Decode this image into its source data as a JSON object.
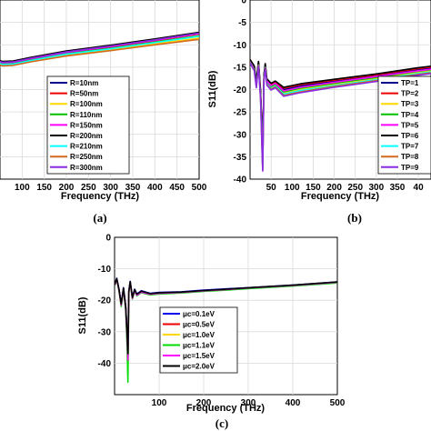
{
  "chart_data": [
    {
      "panel": "(a)",
      "type": "line",
      "xlabel": "Frequency (THz)",
      "ylabel": "",
      "xlim": [
        0,
        500
      ],
      "ylim": [
        -40,
        0
      ],
      "xticks": [
        "100",
        "150",
        "200",
        "250",
        "300",
        "350",
        "400",
        "450",
        "500"
      ],
      "grid": true,
      "legend_position": "lower-right",
      "series": [
        {
          "name": "R=10nm",
          "color": "#00008b",
          "x": [
            0,
            10,
            20,
            35,
            55,
            80,
            120,
            200,
            300,
            400,
            500
          ],
          "y": [
            -12.2,
            -13.3,
            -14.6,
            -13.0,
            -13.8,
            -13.7,
            -12.9,
            -11.5,
            -10.2,
            -8.8,
            -7.3
          ]
        },
        {
          "name": "R=50nm",
          "color": "#ee0000",
          "x": [
            0,
            10,
            20,
            35,
            55,
            80,
            120,
            200,
            300,
            400,
            500
          ],
          "y": [
            -12.4,
            -13.6,
            -14.9,
            -13.3,
            -14.1,
            -14.0,
            -13.2,
            -11.8,
            -10.5,
            -9.1,
            -7.6
          ]
        },
        {
          "name": "R=100nm",
          "color": "#ffd700",
          "x": [
            0,
            10,
            20,
            35,
            55,
            80,
            120,
            200,
            300,
            400,
            500
          ],
          "y": [
            -12.7,
            -14.0,
            -15.3,
            -13.7,
            -14.5,
            -14.4,
            -13.6,
            -12.3,
            -11.1,
            -9.8,
            -8.5
          ]
        },
        {
          "name": "R=110nm",
          "color": "#00c000",
          "x": [
            0,
            10,
            20,
            35,
            55,
            80,
            120,
            200,
            300,
            400,
            500
          ],
          "y": [
            -12.5,
            -13.8,
            -15.1,
            -13.5,
            -14.3,
            -14.2,
            -13.4,
            -12.0,
            -10.8,
            -9.4,
            -8.0
          ]
        },
        {
          "name": "R=150nm",
          "color": "#ff00ff",
          "x": [
            0,
            10,
            20,
            35,
            55,
            80,
            120,
            200,
            300,
            400,
            500
          ],
          "y": [
            -12.3,
            -13.5,
            -14.8,
            -13.2,
            -14.0,
            -13.9,
            -13.1,
            -11.7,
            -10.4,
            -9.0,
            -7.5
          ]
        },
        {
          "name": "R=200nm",
          "color": "#000000",
          "x": [
            0,
            10,
            20,
            35,
            55,
            80,
            120,
            200,
            300,
            400,
            500
          ],
          "y": [
            -12.1,
            -13.2,
            -14.5,
            -12.9,
            -13.7,
            -13.6,
            -12.8,
            -11.4,
            -10.1,
            -8.7,
            -7.2
          ]
        },
        {
          "name": "R=210nm",
          "color": "#00ffff",
          "x": [
            0,
            10,
            20,
            35,
            55,
            80,
            120,
            200,
            300,
            400,
            500
          ],
          "y": [
            -12.6,
            -13.9,
            -15.2,
            -13.6,
            -14.4,
            -14.3,
            -13.5,
            -12.1,
            -10.9,
            -9.5,
            -8.1
          ]
        },
        {
          "name": "R=250nm",
          "color": "#d2691e",
          "x": [
            0,
            10,
            20,
            35,
            55,
            80,
            120,
            200,
            300,
            400,
            500
          ],
          "y": [
            -12.8,
            -14.1,
            -15.5,
            -13.9,
            -14.7,
            -14.6,
            -13.8,
            -12.5,
            -11.3,
            -10.0,
            -8.8
          ]
        },
        {
          "name": "R=300nm",
          "color": "#8a2be2",
          "x": [
            0,
            10,
            20,
            35,
            55,
            80,
            120,
            200,
            300,
            400,
            500
          ],
          "y": [
            -12.2,
            -13.4,
            -14.7,
            -13.1,
            -13.9,
            -13.8,
            -13.0,
            -11.6,
            -10.3,
            -8.9,
            -7.4
          ]
        }
      ]
    },
    {
      "panel": "(b)",
      "type": "line",
      "xlabel": "Frequency (THz)",
      "ylabel": "S11(dB)",
      "xlim": [
        0,
        500
      ],
      "ylim": [
        -40,
        0
      ],
      "xticks": [
        "50",
        "100",
        "150",
        "200",
        "250",
        "300",
        "350",
        "40"
      ],
      "yticks": [
        "-40",
        "-35",
        "-30",
        "-25",
        "-20",
        "-15",
        "-10",
        "-5",
        "0"
      ],
      "grid": true,
      "legend_position": "lower-right",
      "series": [
        {
          "name": "TP=1",
          "color": "#00008b",
          "x": [
            0,
            10,
            15,
            20,
            25,
            28,
            30,
            33,
            36,
            40,
            50,
            60,
            80,
            120,
            200,
            300,
            400,
            500
          ],
          "y": [
            -13.5,
            -15.0,
            -18.5,
            -14.0,
            -21.0,
            -30.0,
            -36.0,
            -17.0,
            -14.5,
            -18.0,
            -19.0,
            -18.5,
            -20.0,
            -19.2,
            -18.2,
            -17.0,
            -15.6,
            -14.5
          ]
        },
        {
          "name": "TP=2",
          "color": "#ee0000",
          "x": [
            0,
            10,
            15,
            20,
            25,
            28,
            30,
            33,
            36,
            40,
            50,
            60,
            80,
            120,
            200,
            300,
            400,
            500
          ],
          "y": [
            -13.4,
            -14.8,
            -18.2,
            -13.8,
            -20.5,
            -29.0,
            -35.0,
            -16.8,
            -14.3,
            -17.8,
            -18.8,
            -18.3,
            -19.7,
            -18.9,
            -17.9,
            -16.7,
            -15.3,
            -14.2
          ]
        },
        {
          "name": "TP=3",
          "color": "#ffd700",
          "x": [
            0,
            10,
            15,
            20,
            25,
            28,
            30,
            33,
            36,
            40,
            50,
            60,
            80,
            120,
            200,
            300,
            400,
            500
          ],
          "y": [
            -13.8,
            -15.4,
            -19.0,
            -14.4,
            -21.5,
            -31.0,
            -37.0,
            -17.4,
            -14.8,
            -18.4,
            -19.5,
            -19.0,
            -20.8,
            -20.0,
            -18.9,
            -17.6,
            -16.2,
            -15.0
          ]
        },
        {
          "name": "TP=4",
          "color": "#00c000",
          "x": [
            0,
            10,
            15,
            20,
            25,
            28,
            30,
            33,
            36,
            40,
            50,
            60,
            80,
            120,
            200,
            300,
            400,
            500
          ],
          "y": [
            -13.7,
            -15.2,
            -18.8,
            -14.2,
            -21.2,
            -30.5,
            -36.5,
            -17.2,
            -14.7,
            -18.2,
            -19.3,
            -18.8,
            -20.5,
            -19.7,
            -18.6,
            -17.3,
            -15.9,
            -14.8
          ]
        },
        {
          "name": "TP=5",
          "color": "#ff00ff",
          "x": [
            0,
            10,
            15,
            20,
            25,
            28,
            30,
            33,
            36,
            40,
            50,
            60,
            80,
            120,
            200,
            300,
            400,
            500
          ],
          "y": [
            -13.6,
            -15.1,
            -18.6,
            -14.1,
            -21.1,
            -30.2,
            -38.0,
            -17.1,
            -14.6,
            -18.1,
            -19.1,
            -18.6,
            -20.3,
            -19.5,
            -18.4,
            -17.1,
            -15.8,
            -14.7
          ]
        },
        {
          "name": "TP=6",
          "color": "#000000",
          "x": [
            0,
            10,
            15,
            20,
            25,
            28,
            30,
            33,
            36,
            40,
            50,
            60,
            80,
            120,
            200,
            300,
            400,
            500
          ],
          "y": [
            -13.3,
            -14.7,
            -18.0,
            -13.7,
            -20.3,
            -28.5,
            -34.5,
            -16.6,
            -14.2,
            -17.6,
            -18.6,
            -18.1,
            -19.5,
            -18.7,
            -17.7,
            -16.5,
            -15.1,
            -14.0
          ]
        },
        {
          "name": "TP=7",
          "color": "#00ffff",
          "x": [
            0,
            10,
            15,
            20,
            25,
            28,
            30,
            33,
            36,
            40,
            50,
            60,
            80,
            120,
            200,
            300,
            400,
            500
          ],
          "y": [
            -13.9,
            -15.5,
            -19.2,
            -14.5,
            -21.8,
            -31.5,
            -37.5,
            -17.6,
            -15.0,
            -18.6,
            -19.7,
            -19.2,
            -21.0,
            -20.2,
            -19.1,
            -17.8,
            -16.4,
            -15.2
          ]
        },
        {
          "name": "TP=8",
          "color": "#d2691e",
          "x": [
            0,
            10,
            15,
            20,
            25,
            28,
            30,
            33,
            36,
            40,
            50,
            60,
            80,
            120,
            200,
            300,
            400,
            500
          ],
          "y": [
            -14.0,
            -15.6,
            -19.4,
            -14.6,
            -22.0,
            -32.0,
            -37.8,
            -17.8,
            -15.1,
            -18.8,
            -19.9,
            -19.4,
            -21.3,
            -20.5,
            -19.3,
            -18.0,
            -16.6,
            -15.4
          ]
        },
        {
          "name": "TP=9",
          "color": "#8a2be2",
          "x": [
            0,
            10,
            15,
            20,
            25,
            28,
            30,
            33,
            36,
            40,
            50,
            60,
            80,
            120,
            200,
            300,
            400,
            500
          ],
          "y": [
            -14.1,
            -15.8,
            -19.6,
            -14.8,
            -22.3,
            -32.5,
            -38.2,
            -18.0,
            -15.3,
            -19.0,
            -20.1,
            -19.6,
            -21.5,
            -20.7,
            -19.5,
            -18.2,
            -16.8,
            -15.6
          ]
        }
      ]
    },
    {
      "panel": "(c)",
      "type": "line",
      "xlabel": "Frequency (THz)",
      "ylabel": "S11(dB)",
      "xlim": [
        0,
        500
      ],
      "ylim": [
        -50,
        0
      ],
      "xticks": [
        "100",
        "200",
        "300",
        "400",
        "500"
      ],
      "yticks": [
        "-40",
        "-30",
        "-20",
        "-10",
        "0"
      ],
      "grid": true,
      "legend_position": "lower-right",
      "series": [
        {
          "name": "μc=0.1eV",
          "color": "#0000ee",
          "x": [
            0,
            5,
            10,
            15,
            20,
            25,
            28,
            30,
            32,
            35,
            40,
            45,
            50,
            60,
            80,
            100,
            150,
            200,
            250,
            300,
            400,
            500
          ],
          "y": [
            -15.0,
            -13.0,
            -16.5,
            -21.0,
            -16.0,
            -22.0,
            -30.0,
            -36.0,
            -17.0,
            -14.0,
            -19.0,
            -16.5,
            -18.0,
            -17.0,
            -17.8,
            -17.5,
            -17.3,
            -16.8,
            -16.4,
            -16.0,
            -15.2,
            -14.2
          ]
        },
        {
          "name": "μc=0.5eV",
          "color": "#ee0000",
          "x": [
            0,
            5,
            10,
            15,
            20,
            25,
            28,
            30,
            32,
            35,
            40,
            45,
            50,
            60,
            80,
            100,
            150,
            200,
            250,
            300,
            400,
            500
          ],
          "y": [
            -15.2,
            -13.2,
            -16.8,
            -21.5,
            -16.3,
            -22.5,
            -31.0,
            -38.0,
            -17.2,
            -14.2,
            -19.3,
            -16.8,
            -18.3,
            -17.3,
            -18.0,
            -17.7,
            -17.5,
            -17.0,
            -16.6,
            -16.1,
            -15.3,
            -14.3
          ]
        },
        {
          "name": "μc=1.0eV",
          "color": "#ffd700",
          "x": [
            0,
            5,
            10,
            15,
            20,
            25,
            28,
            30,
            32,
            35,
            40,
            45,
            50,
            60,
            80,
            100,
            150,
            200,
            250,
            300,
            400,
            500
          ],
          "y": [
            -15.4,
            -13.4,
            -17.0,
            -21.8,
            -16.5,
            -23.0,
            -32.0,
            -40.0,
            -17.4,
            -14.4,
            -19.5,
            -17.0,
            -18.5,
            -17.5,
            -18.2,
            -17.9,
            -17.6,
            -17.1,
            -16.7,
            -16.2,
            -15.4,
            -14.4
          ]
        },
        {
          "name": "μc=1.1eV",
          "color": "#00dd00",
          "x": [
            0,
            5,
            10,
            15,
            20,
            25,
            28,
            30,
            32,
            35,
            40,
            45,
            50,
            60,
            80,
            100,
            150,
            200,
            250,
            300,
            400,
            500
          ],
          "y": [
            -15.5,
            -13.5,
            -17.2,
            -22.0,
            -16.6,
            -23.5,
            -34.0,
            -46.0,
            -17.5,
            -14.5,
            -19.6,
            -17.1,
            -18.6,
            -17.6,
            -18.3,
            -18.0,
            -17.7,
            -17.2,
            -16.8,
            -16.3,
            -15.5,
            -14.5
          ]
        },
        {
          "name": "μc=1.5eV",
          "color": "#ff00ff",
          "x": [
            0,
            5,
            10,
            15,
            20,
            25,
            28,
            30,
            32,
            35,
            40,
            45,
            50,
            60,
            80,
            100,
            150,
            200,
            250,
            300,
            400,
            500
          ],
          "y": [
            -15.3,
            -13.3,
            -16.9,
            -21.6,
            -16.4,
            -22.8,
            -31.5,
            -39.0,
            -17.3,
            -14.3,
            -19.4,
            -16.9,
            -18.4,
            -17.4,
            -18.1,
            -17.8,
            -17.5,
            -17.0,
            -16.6,
            -16.1,
            -15.3,
            -14.3
          ]
        },
        {
          "name": "μc=2.0eV",
          "color": "#000000",
          "x": [
            0,
            5,
            10,
            15,
            20,
            25,
            28,
            30,
            32,
            35,
            40,
            45,
            50,
            60,
            80,
            100,
            150,
            200,
            250,
            300,
            400,
            500
          ],
          "y": [
            -15.1,
            -13.1,
            -16.6,
            -21.2,
            -16.1,
            -22.2,
            -30.5,
            -37.0,
            -17.1,
            -14.1,
            -19.1,
            -16.6,
            -18.1,
            -17.1,
            -17.9,
            -17.6,
            -17.4,
            -16.9,
            -16.5,
            -16.0,
            -15.2,
            -14.2
          ]
        }
      ]
    }
  ]
}
